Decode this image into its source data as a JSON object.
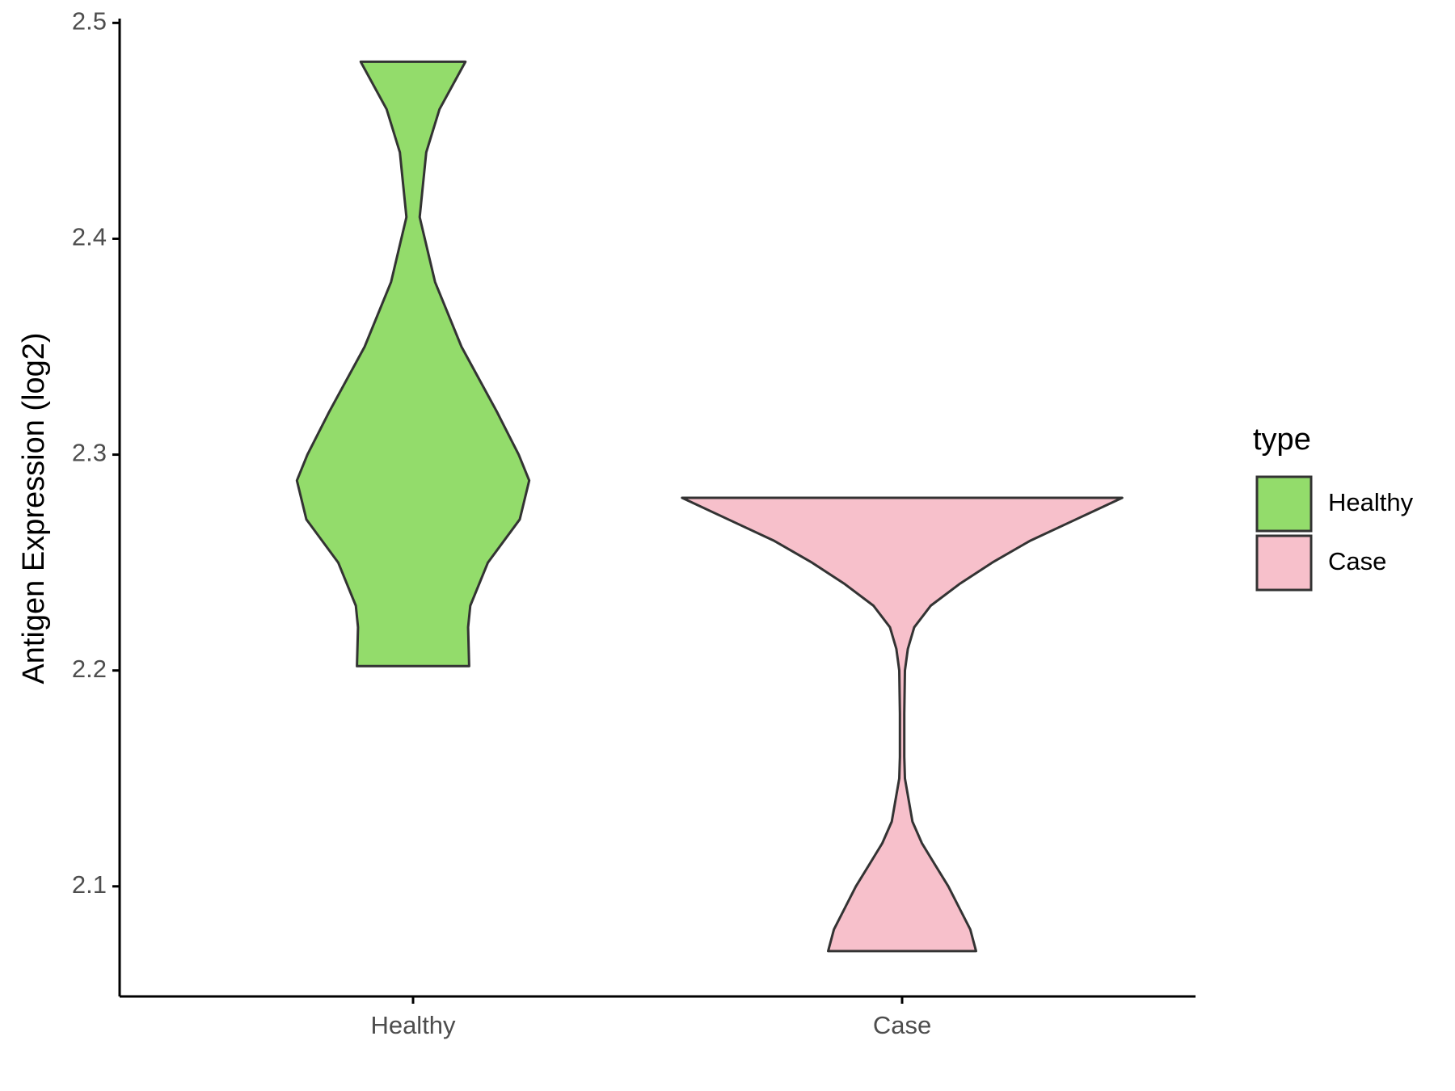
{
  "chart_data": {
    "type": "violin",
    "y_label": "Antigen Expression (log2)",
    "categories": [
      "Healthy",
      "Case"
    ],
    "legend_title": "type",
    "ylim": [
      2.049,
      2.502
    ],
    "yticks": [
      2.1,
      2.2,
      2.3,
      2.4,
      2.5
    ],
    "series": [
      {
        "name": "Healthy",
        "color": "#93dc6b",
        "y": [
          2.202,
          2.22,
          2.23,
          2.25,
          2.27,
          2.288,
          2.3,
          2.32,
          2.35,
          2.38,
          2.41,
          2.44,
          2.46,
          2.482
        ],
        "density": [
          0.255,
          0.25,
          0.26,
          0.34,
          0.485,
          0.528,
          0.48,
          0.38,
          0.22,
          0.1,
          0.03,
          0.06,
          0.12,
          0.238
        ]
      },
      {
        "name": "Case",
        "color": "#f7c0cb",
        "y": [
          2.07,
          2.08,
          2.09,
          2.1,
          2.11,
          2.12,
          2.13,
          2.15,
          2.16,
          2.18,
          2.2,
          2.21,
          2.22,
          2.23,
          2.24,
          2.25,
          2.26,
          2.27,
          2.28
        ],
        "density": [
          0.336,
          0.31,
          0.26,
          0.21,
          0.15,
          0.09,
          0.047,
          0.013,
          0.01,
          0.01,
          0.013,
          0.026,
          0.055,
          0.13,
          0.26,
          0.41,
          0.58,
          0.79,
          1.0
        ]
      }
    ]
  }
}
